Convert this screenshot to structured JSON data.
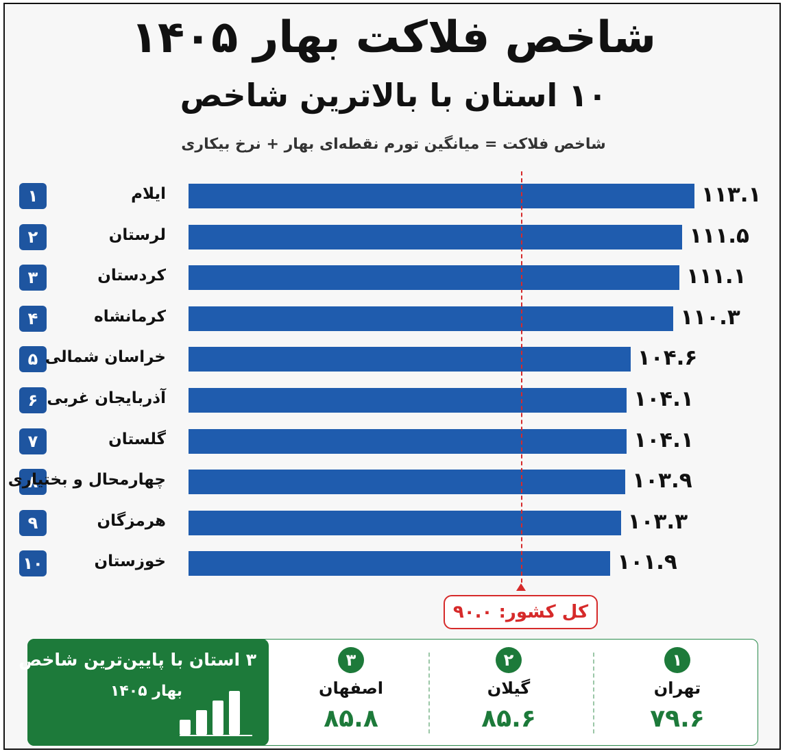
{
  "title": "شاخص فلاکت بهار ۱۴۰۵",
  "subtitle": "۱۰ استان با بالاترین شاخص",
  "formula": "شاخص فلاکت = میانگین تورم نقطه‌ای بهار + نرخ بیکاری",
  "national": {
    "label": "کل کشور: ۹۰.۰",
    "value": 90.0
  },
  "chart_data": {
    "type": "bar",
    "orientation": "horizontal",
    "title": "شاخص فلاکت بهار ۱۴۰۵",
    "subtitle": "۱۰ استان با بالاترین شاخص",
    "ranks": [
      "۱",
      "۲",
      "۳",
      "۴",
      "۵",
      "۶",
      "۷",
      "۸",
      "۹",
      "۱۰"
    ],
    "categories": [
      "ایلام",
      "لرستان",
      "کردستان",
      "کرمانشاه",
      "خراسان شمالی",
      "آذربایجان غربی",
      "گلستان",
      "چهارمحال و بختیاری",
      "هرمزگان",
      "خوزستان"
    ],
    "values": [
      113.1,
      111.5,
      111.1,
      110.3,
      104.6,
      104.1,
      104.1,
      103.9,
      103.3,
      101.9
    ],
    "value_labels": [
      "۱۱۳.۱",
      "۱۱۱.۵",
      "۱۱۱.۱",
      "۱۱۰.۳",
      "۱۰۴.۶",
      "۱۰۴.۱",
      "۱۰۴.۱",
      "۱۰۳.۹",
      "۱۰۳.۳",
      "۱۰۱.۹"
    ],
    "reference_line": 90.0,
    "colors": {
      "bar": "#1f5cae",
      "reference": "#d62a2a"
    }
  },
  "lowest": {
    "title": "۳ استان با پایین‌ترین شاخص",
    "subtitle": "بهار ۱۴۰۵",
    "items": [
      {
        "rank": "۱",
        "name": "تهران",
        "value": "۷۹.۶"
      },
      {
        "rank": "۲",
        "name": "گیلان",
        "value": "۸۵.۶"
      },
      {
        "rank": "۳",
        "name": "اصفهان",
        "value": "۸۵.۸"
      }
    ],
    "color": "#1d7a3a"
  }
}
